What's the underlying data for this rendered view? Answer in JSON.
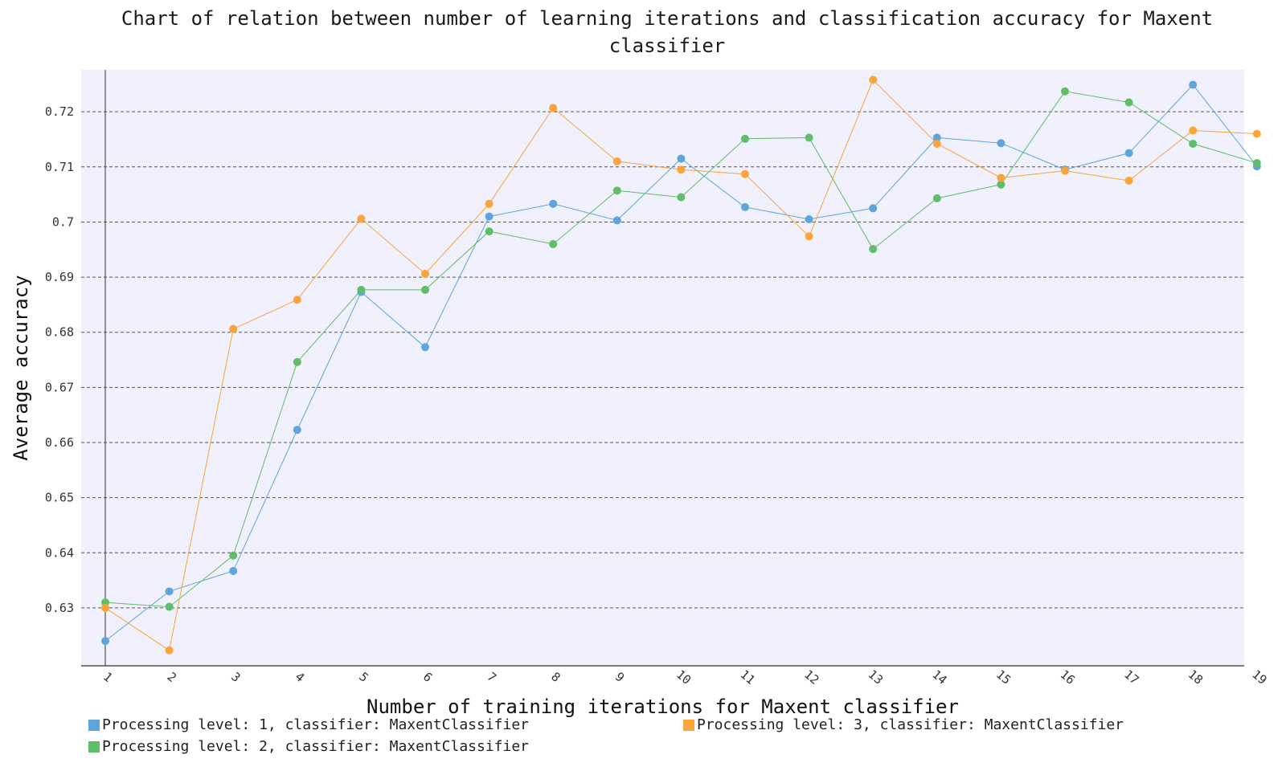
{
  "chart_data": {
    "type": "line",
    "title": "Chart of relation between number of learning iterations and classification accuracy for Maxent\nclassifier",
    "xlabel": "Number of training iterations for Maxent classifier",
    "ylabel": "Average accuracy",
    "x": [
      1,
      2,
      3,
      4,
      5,
      6,
      7,
      8,
      9,
      10,
      11,
      12,
      13,
      14,
      15,
      16,
      17,
      18,
      19
    ],
    "x_tick_labels": [
      "1",
      "2",
      "3",
      "4",
      "5",
      "6",
      "7",
      "8",
      "9",
      "10",
      "11",
      "12",
      "13",
      "14",
      "15",
      "16",
      "17",
      "18",
      "19"
    ],
    "y_ticks": [
      0.63,
      0.64,
      0.65,
      0.66,
      0.67,
      0.68,
      0.69,
      0.7,
      0.71,
      0.72
    ],
    "y_tick_labels": [
      "0.63",
      "0.64",
      "0.65",
      "0.66",
      "0.67",
      "0.68",
      "0.69",
      "0.7",
      "0.71",
      "0.72"
    ],
    "ylim": [
      0.6195,
      0.7276
    ],
    "grid": "horizontal dashed",
    "legend_position": "bottom",
    "background": "#f1f0fd",
    "series": [
      {
        "name": "Processing level: 1, classifier: MaxentClassifier",
        "color": "#5da5da",
        "values": [
          0.624,
          0.633,
          0.6367,
          0.6623,
          0.6873,
          0.6773,
          0.701,
          0.7033,
          0.7003,
          0.7115,
          0.7027,
          0.7005,
          0.7025,
          0.7153,
          0.7143,
          0.7095,
          0.7125,
          0.7249,
          0.7101
        ]
      },
      {
        "name": "Processing level: 2, classifier: MaxentClassifier",
        "color": "#60bd68",
        "values": [
          0.631,
          0.6302,
          0.6395,
          0.6746,
          0.6877,
          0.6877,
          0.6983,
          0.696,
          0.7057,
          0.7045,
          0.7151,
          0.7153,
          0.6951,
          0.7043,
          0.7068,
          0.7237,
          0.7217,
          0.7142,
          0.7107
        ]
      },
      {
        "name": "Processing level: 3, classifier: MaxentClassifier",
        "color": "#faa43a",
        "values": [
          0.63,
          0.6223,
          0.6806,
          0.6859,
          0.7006,
          0.6906,
          0.7033,
          0.7207,
          0.711,
          0.7095,
          0.7087,
          0.6974,
          0.7258,
          0.7142,
          0.708,
          0.7093,
          0.7075,
          0.7166,
          0.716
        ]
      }
    ]
  }
}
